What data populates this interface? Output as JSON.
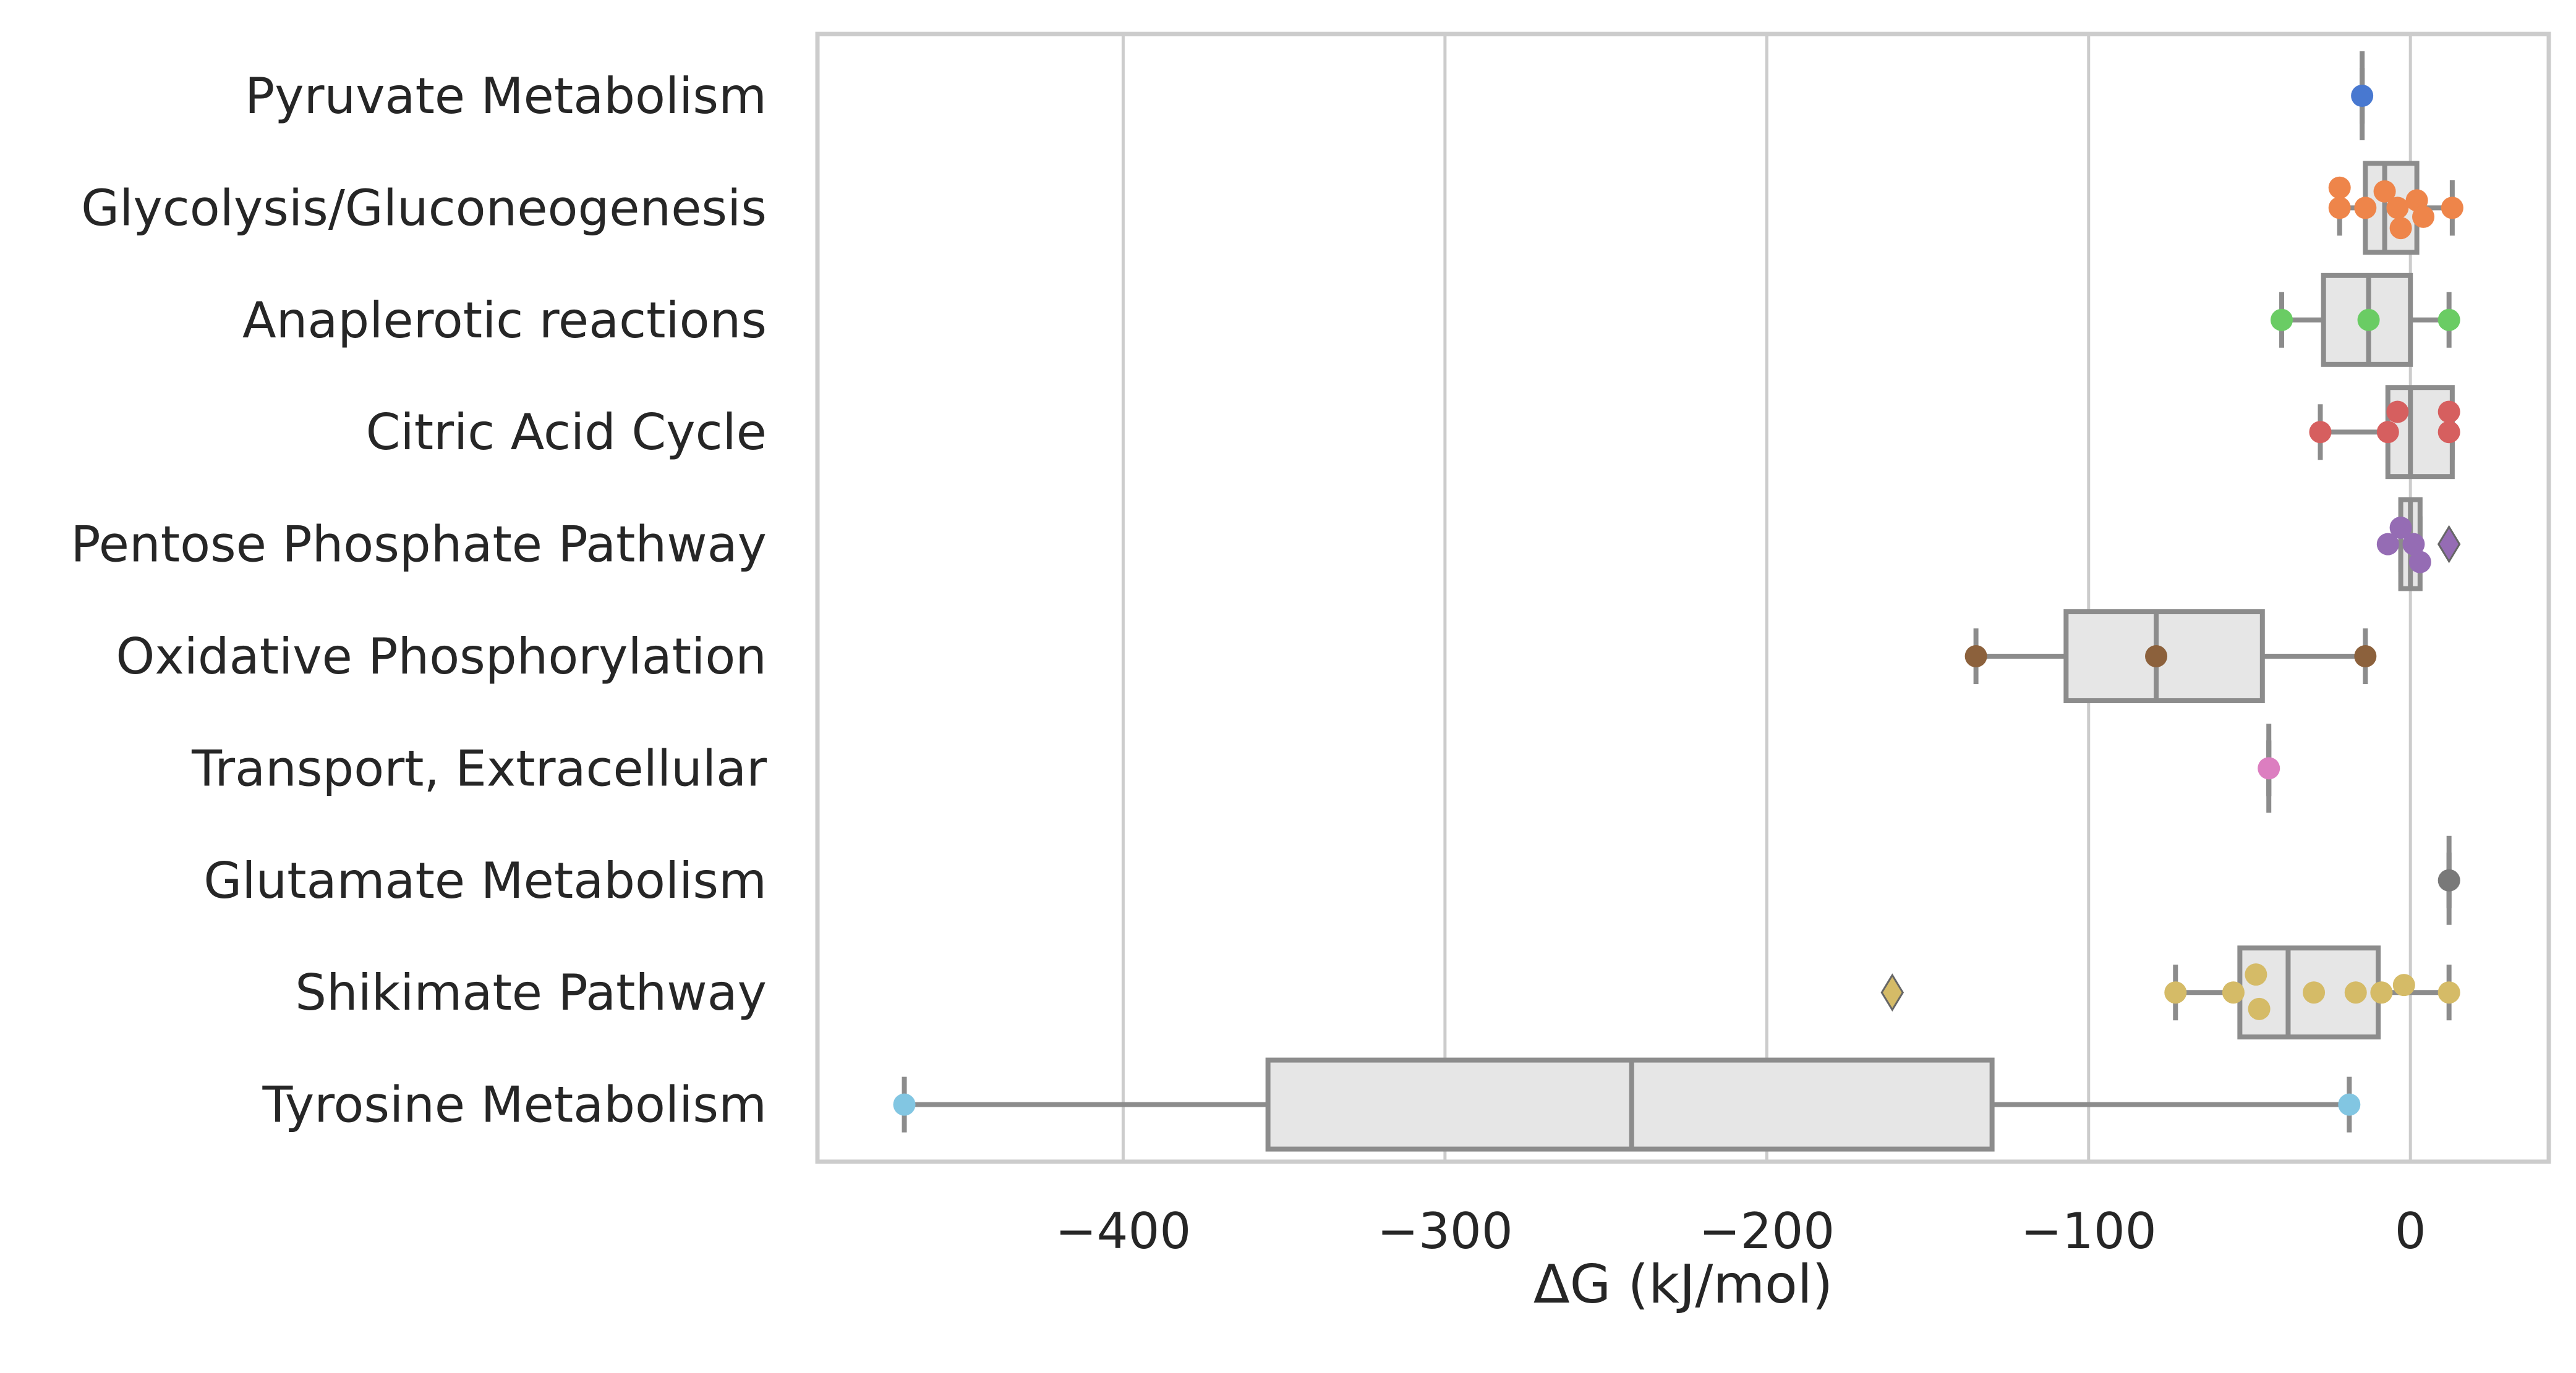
{
  "chart_data": {
    "type": "box",
    "orientation": "horizontal",
    "title": "",
    "xlabel": "ΔG (kJ/mol)",
    "ylabel": "",
    "xlim": [
      -495,
      43
    ],
    "xticks": [
      -400,
      -300,
      -200,
      -100,
      0
    ],
    "xtick_labels": [
      "−400",
      "−300",
      "−200",
      "−100",
      "0"
    ],
    "grid": "vertical",
    "box_fill": "#e6e6e6",
    "box_line": "#8c8c8c",
    "grid_color": "#cccccc",
    "categories": [
      {
        "name": "Pyruvate Metabolism",
        "color": "#4878d0",
        "box": {
          "q1": -15,
          "median": -15,
          "q3": -15,
          "whisker_low": -15,
          "whisker_high": -15
        },
        "points": [
          {
            "x": -15,
            "o": 0
          }
        ],
        "outliers": []
      },
      {
        "name": "Glycolysis/Gluconeogenesis",
        "color": "#ee854a",
        "box": {
          "q1": -14,
          "median": -8,
          "q3": 2,
          "whisker_low": -22,
          "whisker_high": 13
        },
        "points": [
          {
            "x": -22,
            "o": -0.27
          },
          {
            "x": -22,
            "o": 0.0
          },
          {
            "x": -14,
            "o": 0.0
          },
          {
            "x": -8,
            "o": -0.22
          },
          {
            "x": -4,
            "o": 0.0
          },
          {
            "x": -3,
            "o": 0.27
          },
          {
            "x": 2,
            "o": -0.1
          },
          {
            "x": 4,
            "o": 0.12
          },
          {
            "x": 13,
            "o": 0.0
          }
        ],
        "outliers": []
      },
      {
        "name": "Anaplerotic reactions",
        "color": "#6acc64",
        "box": {
          "q1": -27,
          "median": -13,
          "q3": 0,
          "whisker_low": -40,
          "whisker_high": 12
        },
        "points": [
          {
            "x": -40,
            "o": 0
          },
          {
            "x": -13,
            "o": 0
          },
          {
            "x": 12,
            "o": 0
          }
        ],
        "outliers": []
      },
      {
        "name": "Citric Acid Cycle",
        "color": "#d65f5f",
        "box": {
          "q1": -7,
          "median": 0,
          "q3": 13,
          "whisker_low": -28,
          "whisker_high": 13
        },
        "points": [
          {
            "x": -28,
            "o": 0.0
          },
          {
            "x": -7,
            "o": 0.0
          },
          {
            "x": -4,
            "o": -0.27
          },
          {
            "x": 12,
            "o": -0.27
          },
          {
            "x": 12,
            "o": 0.0
          }
        ],
        "outliers": []
      },
      {
        "name": "Pentose Phosphate Pathway",
        "color": "#956cb4",
        "box": {
          "q1": -3,
          "median": 0,
          "q3": 3,
          "whisker_low": -3,
          "whisker_high": 3
        },
        "points": [
          {
            "x": -7,
            "o": 0.0
          },
          {
            "x": -3,
            "o": -0.22
          },
          {
            "x": 1,
            "o": 0.0
          },
          {
            "x": 3,
            "o": 0.24
          }
        ],
        "outliers": [
          {
            "x": 12,
            "o": 0.0
          }
        ]
      },
      {
        "name": "Oxidative Phosphorylation",
        "color": "#8c613c",
        "box": {
          "q1": -107,
          "median": -79,
          "q3": -46,
          "whisker_low": -135,
          "whisker_high": -14
        },
        "points": [
          {
            "x": -135,
            "o": 0
          },
          {
            "x": -79,
            "o": 0
          },
          {
            "x": -14,
            "o": 0
          }
        ],
        "outliers": []
      },
      {
        "name": "Transport, Extracellular",
        "color": "#dc7ec0",
        "box": {
          "q1": -44,
          "median": -44,
          "q3": -44,
          "whisker_low": -44,
          "whisker_high": -44
        },
        "points": [
          {
            "x": -44,
            "o": 0
          }
        ],
        "outliers": []
      },
      {
        "name": "Glutamate Metabolism",
        "color": "#797979",
        "box": {
          "q1": 12,
          "median": 12,
          "q3": 12,
          "whisker_low": 12,
          "whisker_high": 12
        },
        "points": [
          {
            "x": 12,
            "o": 0
          }
        ],
        "outliers": []
      },
      {
        "name": "Shikimate Pathway",
        "color": "#d5bb67",
        "box": {
          "q1": -53,
          "median": -38,
          "q3": -10,
          "whisker_low": -73,
          "whisker_high": 12
        },
        "points": [
          {
            "x": -73,
            "o": 0.0
          },
          {
            "x": -55,
            "o": 0.0
          },
          {
            "x": -48,
            "o": -0.24
          },
          {
            "x": -47,
            "o": 0.22
          },
          {
            "x": -30,
            "o": 0.0
          },
          {
            "x": -17,
            "o": 0.0
          },
          {
            "x": -9,
            "o": 0.0
          },
          {
            "x": -2,
            "o": -0.1
          },
          {
            "x": 12,
            "o": 0.0
          }
        ],
        "outliers": [
          {
            "x": -161,
            "o": 0.0
          }
        ]
      },
      {
        "name": "Tyrosine Metabolism",
        "color": "#82c6e2",
        "box": {
          "q1": -355,
          "median": -242,
          "q3": -130,
          "whisker_low": -468,
          "whisker_high": -19
        },
        "points": [
          {
            "x": -468,
            "o": 0
          },
          {
            "x": -19,
            "o": 0
          }
        ],
        "outliers": []
      }
    ]
  }
}
